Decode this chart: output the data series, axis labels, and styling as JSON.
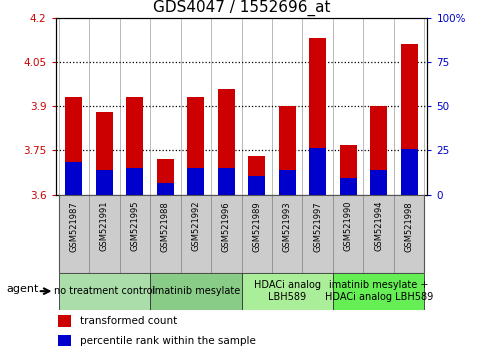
{
  "title": "GDS4047 / 1552696_at",
  "samples": [
    "GSM521987",
    "GSM521991",
    "GSM521995",
    "GSM521988",
    "GSM521992",
    "GSM521996",
    "GSM521989",
    "GSM521993",
    "GSM521997",
    "GSM521990",
    "GSM521994",
    "GSM521998"
  ],
  "transformed_count": [
    3.93,
    3.88,
    3.93,
    3.72,
    3.93,
    3.96,
    3.73,
    3.9,
    4.13,
    3.77,
    3.9,
    4.11
  ],
  "percentile_rank": [
    3.71,
    3.685,
    3.69,
    3.64,
    3.69,
    3.69,
    3.665,
    3.685,
    3.76,
    3.655,
    3.685,
    3.755
  ],
  "ylim_left": [
    3.6,
    4.2
  ],
  "ylim_right": [
    0,
    100
  ],
  "yticks_left": [
    3.6,
    3.75,
    3.9,
    4.05,
    4.2
  ],
  "yticks_right": [
    0,
    25,
    50,
    75,
    100
  ],
  "ytick_labels_left": [
    "3.6",
    "3.75",
    "3.9",
    "4.05",
    "4.2"
  ],
  "ytick_labels_right": [
    "0",
    "25",
    "50",
    "75",
    "100%"
  ],
  "hlines": [
    3.75,
    3.9,
    4.05
  ],
  "bar_color": "#cc0000",
  "percentile_color": "#0000cc",
  "groups": [
    {
      "label": "no treatment control",
      "start": 0,
      "end": 3,
      "color": "#aaddaa"
    },
    {
      "label": "imatinib mesylate",
      "start": 3,
      "end": 6,
      "color": "#88cc88"
    },
    {
      "label": "HDACi analog\nLBH589",
      "start": 6,
      "end": 9,
      "color": "#aaee99"
    },
    {
      "label": "imatinib mesylate +\nHDACi analog LBH589",
      "start": 9,
      "end": 12,
      "color": "#66ee55"
    }
  ],
  "agent_label": "agent",
  "legend_transformed": "transformed count",
  "legend_percentile": "percentile rank within the sample",
  "bar_width": 0.55,
  "ylabel_left_color": "#cc0000",
  "ylabel_right_color": "#0000cc",
  "title_fontsize": 11,
  "tick_fontsize": 7.5,
  "sample_fontsize": 6,
  "group_fontsize": 7,
  "legend_fontsize": 7.5,
  "agent_fontsize": 8
}
